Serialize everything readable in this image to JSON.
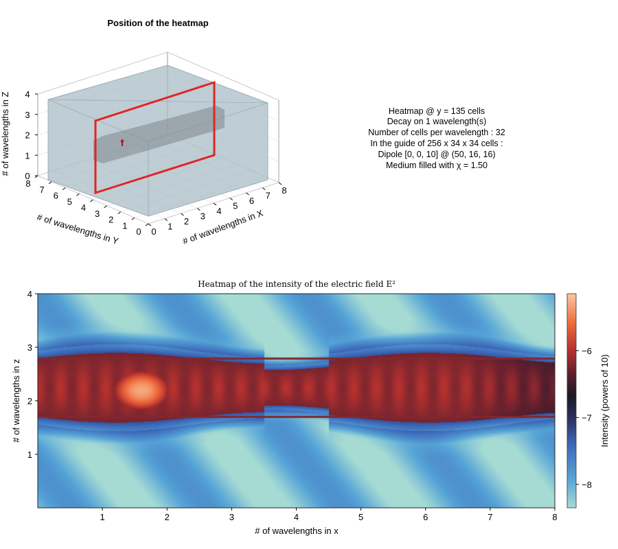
{
  "chart_data": [
    {
      "type": "3d-box",
      "title": "Position of the heatmap",
      "xlabel": "# of wavelengths in X",
      "ylabel": "# of wavelengths in Y",
      "zlabel": "# of wavelengths in Z",
      "xlim": [
        0,
        8
      ],
      "ylim": [
        0,
        8
      ],
      "zlim": [
        0,
        4
      ],
      "x_ticks": [
        "0",
        "1",
        "2",
        "3",
        "4",
        "5",
        "6",
        "7",
        "8"
      ],
      "y_ticks": [
        "0",
        "1",
        "2",
        "3",
        "4",
        "5",
        "6",
        "7",
        "8"
      ],
      "z_ticks": [
        "0",
        "1",
        "2",
        "3",
        "4"
      ],
      "guide_box": {
        "x": [
          0,
          8
        ],
        "y": [
          0,
          1.0625
        ],
        "z": [
          0,
          1.0625
        ]
      },
      "medium_box": {
        "x": [
          0,
          8
        ],
        "y": [
          0,
          8
        ],
        "z": [
          0,
          4
        ]
      },
      "heatmap_plane": {
        "y": 4.22,
        "x": [
          0,
          8
        ],
        "z": [
          0,
          4
        ],
        "color": "#e02424"
      },
      "dipole": {
        "x": 1.56,
        "y": 0.5,
        "z": 0.5,
        "color": "#c01818"
      },
      "grid": true
    },
    {
      "type": "heatmap",
      "title": "Heatmap of the intensity of the electric field E²",
      "xlabel": "# of wavelengths in x",
      "ylabel": "# of wavelengths in z",
      "xlim": [
        0,
        8
      ],
      "ylim": [
        0,
        4
      ],
      "x_ticks": [
        "1",
        "2",
        "3",
        "4",
        "5",
        "6",
        "7",
        "8"
      ],
      "y_ticks": [
        "1",
        "2",
        "3",
        "4"
      ],
      "colorbar": {
        "label": "Intensity (powers of 10)",
        "range": [
          -8.35,
          -5.15
        ],
        "ticks": [
          "-6",
          "-7",
          "-8"
        ],
        "colormap": "icefire-like"
      },
      "features": {
        "hot_spot": {
          "x": 1.6,
          "z": 2.2,
          "log_intensity": -5.3
        },
        "core_band_z": [
          1.7,
          2.8
        ],
        "core_log_intensity": -6.1,
        "outer_log_intensity": -7.8
      }
    }
  ],
  "info_text": [
    "Heatmap @ y = 135 cells",
    "Decay on 1 wavelength(s)",
    "Number of cells per wavelength : 32",
    "In the guide of 256 x 34 x 34 cells :",
    "Dipole [0, 0, 10] @ (50, 16, 16)",
    "Medium filled with χ = 1.50"
  ],
  "colors": {
    "box_fill": "#a9bcc6",
    "box_edge": "#7b8f99",
    "guide_fill": "#7d878c",
    "plane": "#e02424"
  }
}
